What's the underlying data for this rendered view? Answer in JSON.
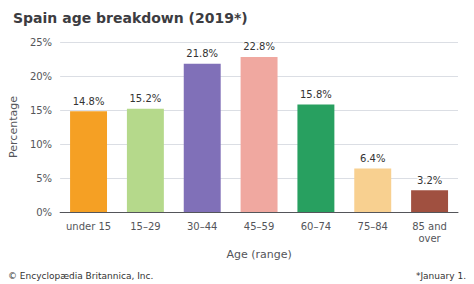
{
  "chart_data": {
    "type": "bar",
    "title": "Spain age breakdown (2019*)",
    "categories": [
      "under 15",
      "15–29",
      "30–44",
      "45–59",
      "60–74",
      "75–84",
      "85 and\nover"
    ],
    "values": [
      14.8,
      15.2,
      21.8,
      22.8,
      15.8,
      6.4,
      3.2
    ],
    "value_labels": [
      "14.8%",
      "15.2%",
      "21.8%",
      "22.8%",
      "15.8%",
      "6.4%",
      "3.2%"
    ],
    "data_labels": true,
    "colors": [
      "#f5a024",
      "#b5d98b",
      "#8070b8",
      "#f0a8a0",
      "#28a060",
      "#f8d090",
      "#a05040"
    ],
    "xlabel": "Age (range)",
    "ylabel": "Percentage",
    "ylim": [
      0,
      25
    ],
    "yticks": [
      {
        "value": 0,
        "label": "0%"
      },
      {
        "value": 5,
        "label": "5%"
      },
      {
        "value": 10,
        "label": "10%"
      },
      {
        "value": 15,
        "label": "15%"
      },
      {
        "value": 20,
        "label": "20%"
      },
      {
        "value": 25,
        "label": "25%"
      }
    ],
    "grid": true,
    "annotations": [
      "© Encyclopædia Britannica, Inc.",
      "*January 1."
    ]
  }
}
